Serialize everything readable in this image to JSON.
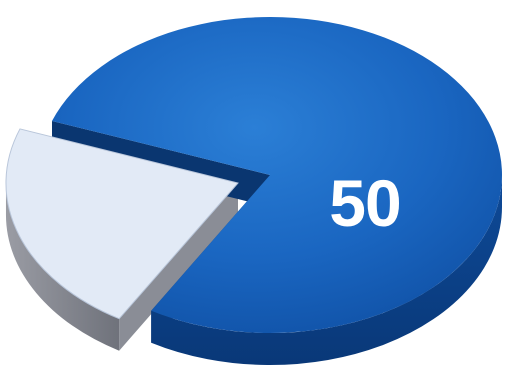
{
  "chart_data": {
    "type": "pie",
    "style": "3d-exploded",
    "slices": [
      {
        "value": 78,
        "color": "#1565c0",
        "side_color": "#0b3f86",
        "exploded": false
      },
      {
        "value": 22,
        "color": "#e2eaf6",
        "side_color": "#8e9099",
        "exploded": true
      }
    ],
    "data_labels": [
      "50"
    ]
  }
}
